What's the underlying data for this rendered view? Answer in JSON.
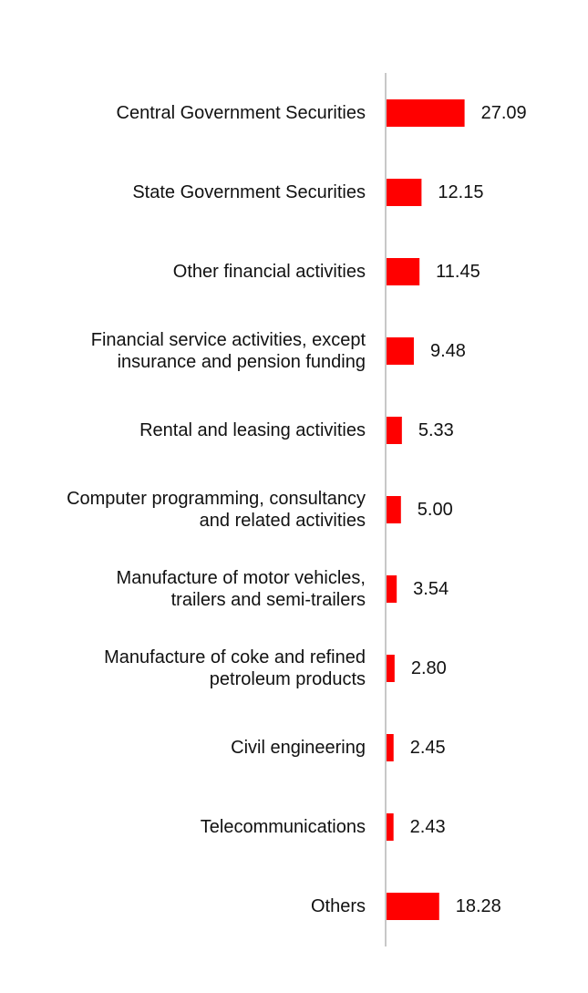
{
  "chart_data": {
    "type": "bar",
    "orientation": "horizontal",
    "categories": [
      [
        "Central Government Securities"
      ],
      [
        "State Government Securities"
      ],
      [
        "Other financial activities"
      ],
      [
        "Financial service activities, except",
        "insurance and pension funding"
      ],
      [
        "Rental and leasing activities"
      ],
      [
        "Computer programming, consultancy",
        "and related activities"
      ],
      [
        "Manufacture of motor vehicles,",
        "trailers and semi-trailers"
      ],
      [
        "Manufacture of coke and refined",
        "petroleum products"
      ],
      [
        "Civil engineering"
      ],
      [
        "Telecommunications"
      ],
      [
        "Others"
      ]
    ],
    "values": [
      27.09,
      12.15,
      11.45,
      9.48,
      5.33,
      5.0,
      3.54,
      2.8,
      2.45,
      2.43,
      18.28
    ],
    "value_labels": [
      "27.09",
      "12.15",
      "11.45",
      "9.48",
      "5.33",
      "5.00",
      "3.54",
      "2.80",
      "2.45",
      "2.43",
      "18.28"
    ],
    "bar_color": "#ff0000",
    "axis_color": "#c8c8c8",
    "title": "",
    "xlabel": "",
    "ylabel": "",
    "grid": false,
    "legend": "none"
  }
}
